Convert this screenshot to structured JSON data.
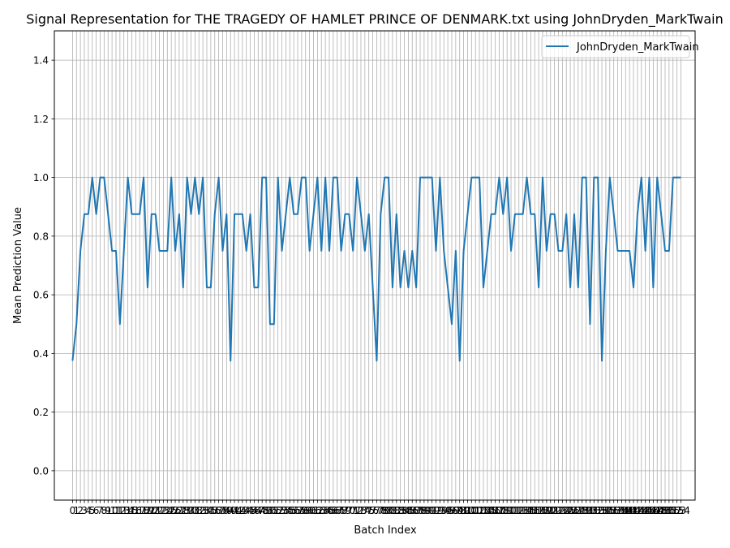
{
  "chart_data": {
    "type": "line",
    "title": "Signal Representation for THE TRAGEDY OF HAMLET PRINCE OF DENMARK.txt using JohnDryden_MarkTwain",
    "xlabel": "Batch Index",
    "ylabel": "Mean Prediction Value",
    "ylim": [
      -0.1,
      1.5
    ],
    "xlim": [
      -4.6,
      157.6
    ],
    "yticks": [
      "0.0",
      "0.2",
      "0.4",
      "0.6",
      "0.8",
      "1.0",
      "1.2",
      "1.4"
    ],
    "grid": true,
    "legend": "top-right",
    "color": "#1f77b4",
    "series": [
      {
        "name": "JohnDryden_MarkTwain",
        "values": [
          0.375,
          0.5,
          0.75,
          0.875,
          0.875,
          1.0,
          0.875,
          1.0,
          1.0,
          0.875,
          0.75,
          0.75,
          0.5,
          0.75,
          1.0,
          0.875,
          0.875,
          0.875,
          1.0,
          0.625,
          0.875,
          0.875,
          0.75,
          0.75,
          0.75,
          1.0,
          0.75,
          0.875,
          0.625,
          1.0,
          0.875,
          1.0,
          0.875,
          1.0,
          0.625,
          0.625,
          0.875,
          1.0,
          0.75,
          0.875,
          0.375,
          0.875,
          0.875,
          0.875,
          0.75,
          0.875,
          0.625,
          0.625,
          1.0,
          1.0,
          0.5,
          0.5,
          1.0,
          0.75,
          0.875,
          1.0,
          0.875,
          0.875,
          1.0,
          1.0,
          0.75,
          0.875,
          1.0,
          0.75,
          1.0,
          0.75,
          1.0,
          1.0,
          0.75,
          0.875,
          0.875,
          0.75,
          1.0,
          0.875,
          0.75,
          0.875,
          0.625,
          0.375,
          0.875,
          1.0,
          1.0,
          0.625,
          0.875,
          0.625,
          0.75,
          0.625,
          0.75,
          0.625,
          1.0,
          1.0,
          1.0,
          1.0,
          0.75,
          1.0,
          0.75,
          0.625,
          0.5,
          0.75,
          0.375,
          0.75,
          0.875,
          1.0,
          1.0,
          1.0,
          0.625,
          0.75,
          0.875,
          0.875,
          1.0,
          0.875,
          1.0,
          0.75,
          0.875,
          0.875,
          0.875,
          1.0,
          0.875,
          0.875,
          0.625,
          1.0,
          0.75,
          0.875,
          0.875,
          0.75,
          0.75,
          0.875,
          0.625,
          0.875,
          0.625,
          1.0,
          1.0,
          0.5,
          1.0,
          1.0,
          0.375,
          0.75,
          1.0,
          0.875,
          0.75,
          0.75,
          0.75,
          0.75,
          0.625,
          0.875,
          1.0,
          0.75,
          1.0,
          0.625,
          1.0,
          0.875,
          0.75,
          0.75,
          1.0,
          1.0,
          1.0
        ]
      }
    ]
  }
}
